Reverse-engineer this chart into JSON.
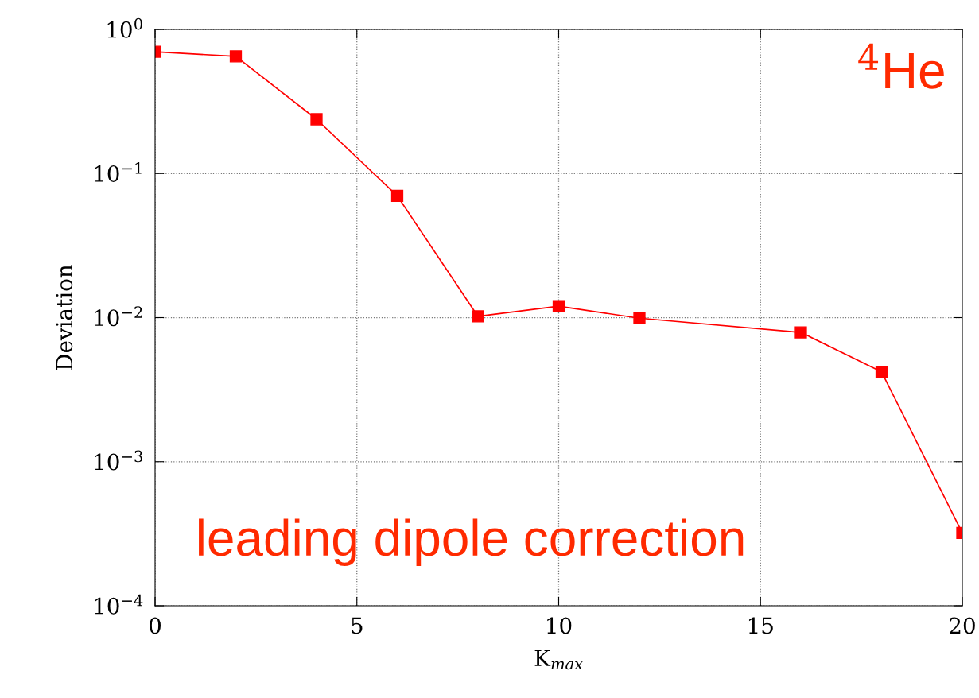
{
  "chart_data": {
    "type": "line",
    "xlabel": "K$_{max}$",
    "ylabel": "Deviation",
    "x": [
      0,
      2,
      4,
      6,
      8,
      10,
      12,
      16,
      18,
      20
    ],
    "series": [
      {
        "color": "#ff0000",
        "values": [
          0.7,
          0.65,
          0.238,
          0.07,
          0.0102,
          0.012,
          0.0099,
          0.0079,
          0.0042,
          0.00032
        ]
      }
    ],
    "log": "y",
    "marker": "square",
    "line_style": "solid",
    "grid": true,
    "xlim": [
      0,
      20
    ],
    "xticks": [
      0,
      5,
      10,
      15,
      20
    ],
    "ylim": [
      0.0001,
      1
    ],
    "yticks": [
      {
        "value": 0.0001,
        "label": "10$^{−4}$"
      },
      {
        "value": 0.001,
        "label": "10$^{−3}$"
      },
      {
        "value": 0.01,
        "label": "10$^{−2}$"
      },
      {
        "value": 0.1,
        "label": "10$^{−1}$"
      },
      {
        "value": 1,
        "label": "10$^{0}$"
      }
    ],
    "annotations": [
      "$^{4}$He",
      "leading dipole correction"
    ]
  }
}
